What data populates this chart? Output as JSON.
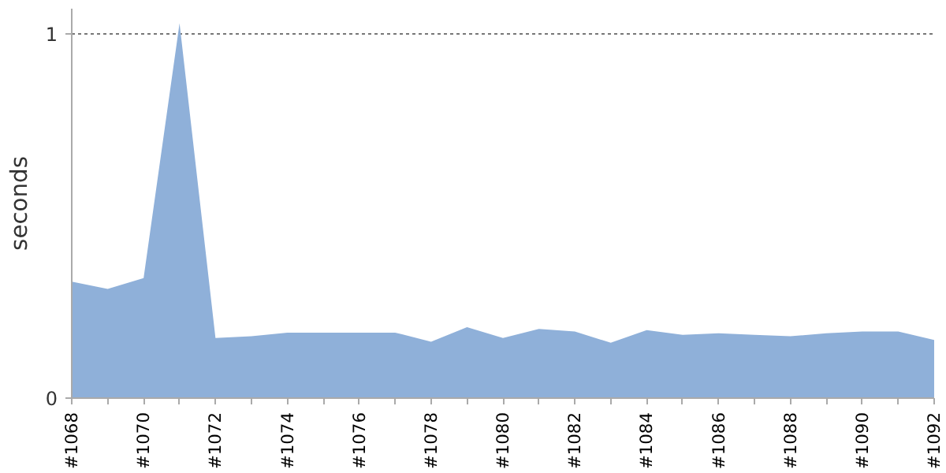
{
  "chart_data": {
    "type": "area",
    "ylabel": "seconds",
    "categories": [
      "#1068",
      null,
      "#1070",
      null,
      "#1072",
      null,
      "#1074",
      null,
      "#1076",
      null,
      "#1078",
      null,
      "#1080",
      null,
      "#1082",
      null,
      "#1084",
      null,
      "#1086",
      null,
      "#1088",
      null,
      "#1090",
      null,
      "#1092"
    ],
    "series": [
      {
        "color": "#8fb0d9",
        "values": [
          0.32,
          0.3,
          0.33,
          1.03,
          0.165,
          0.17,
          0.18,
          0.18,
          0.18,
          0.18,
          0.155,
          0.195,
          0.165,
          0.19,
          0.183,
          0.152,
          0.187,
          0.174,
          0.178,
          0.174,
          0.17,
          0.178,
          0.183,
          0.183,
          0.16
        ]
      }
    ],
    "ylim": [
      0,
      1.07
    ],
    "yticks": [
      0,
      1
    ],
    "grid": "y"
  }
}
